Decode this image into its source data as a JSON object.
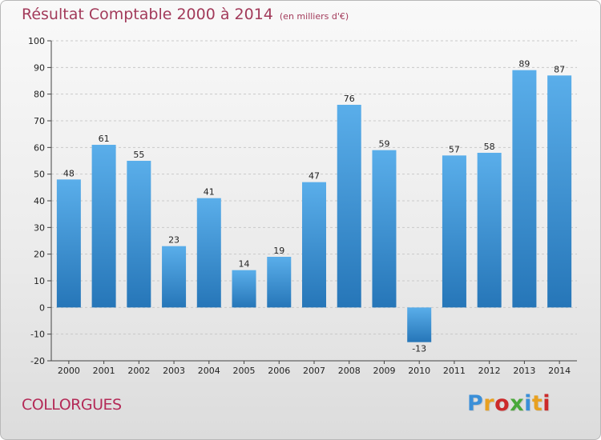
{
  "header": {
    "title": "Résultat Comptable 2000 à 2014",
    "subtitle": "(en milliers d'€)"
  },
  "footer": {
    "commune": "COLLORGUES",
    "brand": "Proxiti",
    "brand_colors": [
      "#3a8fd8",
      "#e8a020",
      "#cc2a2a",
      "#4aa83a",
      "#3a8fd8",
      "#e8a020",
      "#cc2a2a"
    ]
  },
  "colors": {
    "bar_light": "#5aaeea",
    "bar_dark": "#2676b8",
    "grid": "#c9c9c9",
    "title": "#a23a5a",
    "commune": "#b42a57"
  },
  "chart_data": {
    "type": "bar",
    "categories": [
      "2000",
      "2001",
      "2002",
      "2003",
      "2004",
      "2005",
      "2006",
      "2007",
      "2008",
      "2009",
      "2010",
      "2011",
      "2012",
      "2013",
      "2014"
    ],
    "values": [
      48,
      61,
      55,
      23,
      41,
      14,
      19,
      47,
      76,
      59,
      -13,
      57,
      58,
      89,
      87
    ],
    "title": "Résultat Comptable 2000 à 2014",
    "subtitle": "(en milliers d'€)",
    "xlabel": "",
    "ylabel": "",
    "ylim": [
      -20,
      100
    ],
    "yticks": [
      -20,
      -10,
      0,
      10,
      20,
      30,
      40,
      50,
      60,
      70,
      80,
      90,
      100
    ],
    "grid": true,
    "data_labels": true,
    "legend": "none"
  }
}
